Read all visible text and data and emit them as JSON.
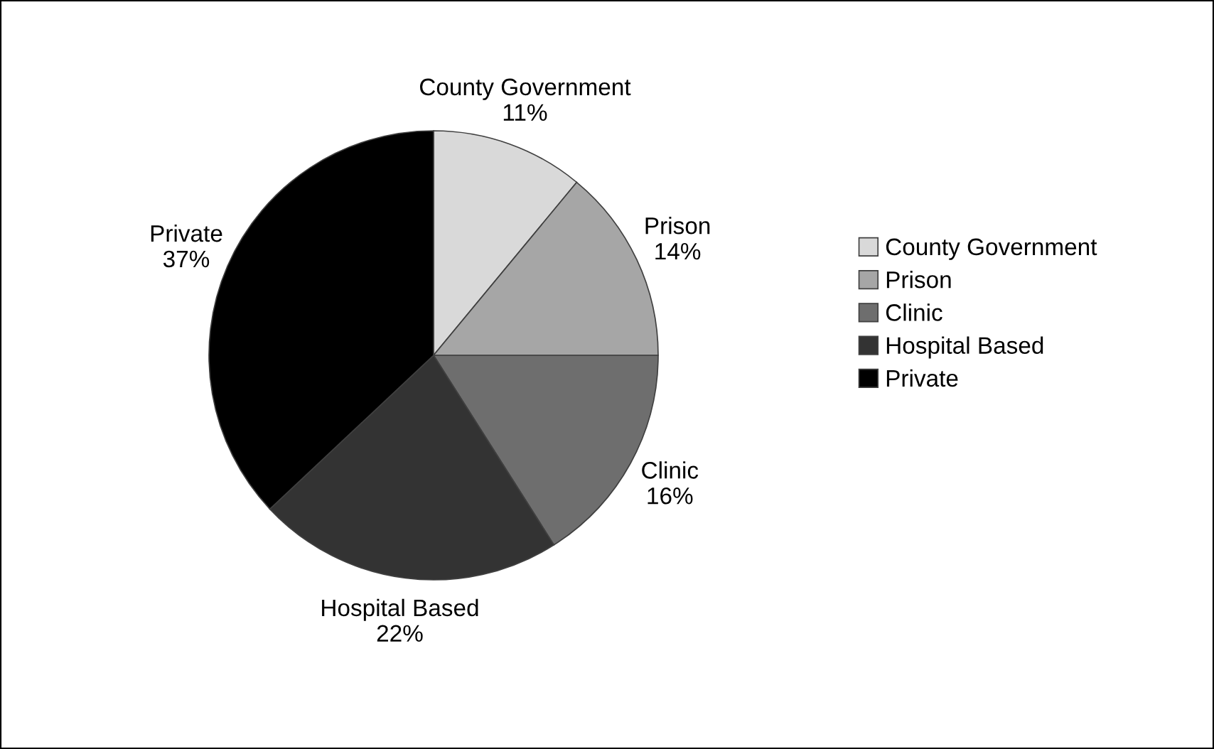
{
  "chart_data": {
    "type": "pie",
    "categories": [
      "County Government",
      "Prison",
      "Clinic",
      "Hospital Based",
      "Private"
    ],
    "values": [
      11,
      14,
      16,
      22,
      37
    ],
    "value_labels": [
      "11%",
      "14%",
      "16%",
      "22%",
      "37%"
    ],
    "colors": [
      "#d9d9d9",
      "#a6a6a6",
      "#6e6e6e",
      "#333333",
      "#000000"
    ],
    "legend": "right"
  }
}
